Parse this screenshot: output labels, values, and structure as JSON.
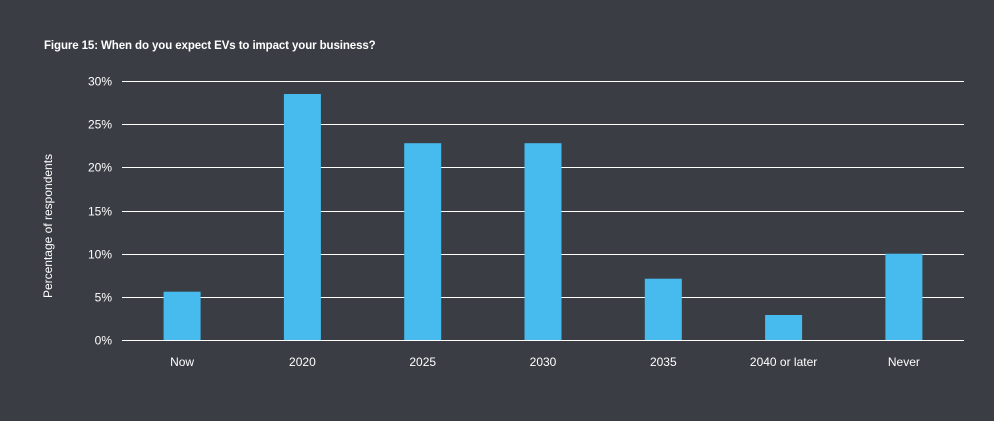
{
  "figure_title": "Figure 15:  When do you expect EVs to impact your business?",
  "colors": {
    "background": "#3a3d44",
    "bar": "#47bbed",
    "gridline": "#ffffff",
    "text": "#ffffff"
  },
  "chart_data": {
    "type": "bar",
    "title": "Figure 15:  When do you expect EVs to impact your business?",
    "xlabel": "",
    "ylabel": "Percentage of respondents",
    "categories": [
      "Now",
      "2020",
      "2025",
      "2030",
      "2035",
      "2040 or later",
      "Never"
    ],
    "values": [
      5.6,
      28.5,
      22.8,
      22.8,
      7.1,
      2.9,
      10.0
    ],
    "ylim": [
      0,
      30
    ],
    "yticks": [
      0,
      5,
      10,
      15,
      20,
      25,
      30
    ],
    "ytick_labels": [
      "0%",
      "5%",
      "10%",
      "15%",
      "20%",
      "25%",
      "30%"
    ],
    "grid": true,
    "legend": "none"
  }
}
